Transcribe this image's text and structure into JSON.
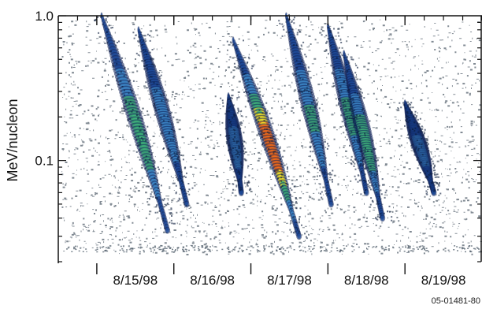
{
  "chart_data": {
    "type": "heatmap",
    "title": "",
    "xlabel": "",
    "ylabel": "MeV/nucleon",
    "y_scale": "log",
    "ylim": [
      0.02,
      1.0
    ],
    "y_ticks": [
      {
        "value": 1.0,
        "label": "1.0"
      },
      {
        "value": 0.1,
        "label": "0.1"
      }
    ],
    "x_ticks": [
      {
        "value": "1998-08-15",
        "label": "8/15/98"
      },
      {
        "value": "1998-08-16",
        "label": "8/16/98"
      },
      {
        "value": "1998-08-17",
        "label": "8/17/98"
      },
      {
        "value": "1998-08-18",
        "label": "8/18/98"
      },
      {
        "value": "1998-08-19",
        "label": "8/19/98"
      }
    ],
    "xlim": [
      "1998-08-14T12:00",
      "1998-08-20T00:00"
    ],
    "grid": false,
    "legend": "none",
    "colorscale": [
      "#0a1a4a",
      "#1f4fa0",
      "#3f8fd0",
      "#3fb07a",
      "#f2e02a",
      "#f06a1a",
      "#d81f10"
    ],
    "dispersion_streaks": [
      {
        "start": "1998-08-15T01:30",
        "start_energy": 1.0,
        "end": "1998-08-15T22:00",
        "end_energy": 0.033,
        "peak_level": 0.55
      },
      {
        "start": "1998-08-15T13:00",
        "start_energy": 0.8,
        "end": "1998-08-16T04:00",
        "end_energy": 0.05,
        "peak_level": 0.3
      },
      {
        "start": "1998-08-16T17:00",
        "start_energy": 0.28,
        "end": "1998-08-16T21:00",
        "end_energy": 0.06,
        "peak_level": 0.3
      },
      {
        "start": "1998-08-16T18:30",
        "start_energy": 0.68,
        "end": "1998-08-17T15:00",
        "end_energy": 0.03,
        "peak_level": 1.0
      },
      {
        "start": "1998-08-17T11:00",
        "start_energy": 1.0,
        "end": "1998-08-18T01:00",
        "end_energy": 0.05,
        "peak_level": 0.4
      },
      {
        "start": "1998-08-18T00:00",
        "start_energy": 0.85,
        "end": "1998-08-18T12:00",
        "end_energy": 0.06,
        "peak_level": 0.45
      },
      {
        "start": "1998-08-18T05:00",
        "start_energy": 0.55,
        "end": "1998-08-18T17:00",
        "end_energy": 0.04,
        "peak_level": 0.55
      },
      {
        "start": "1998-08-19T00:00",
        "start_energy": 0.25,
        "end": "1998-08-19T09:00",
        "end_energy": 0.06,
        "peak_level": 0.25
      }
    ]
  },
  "figure_id": "05-01481-80"
}
